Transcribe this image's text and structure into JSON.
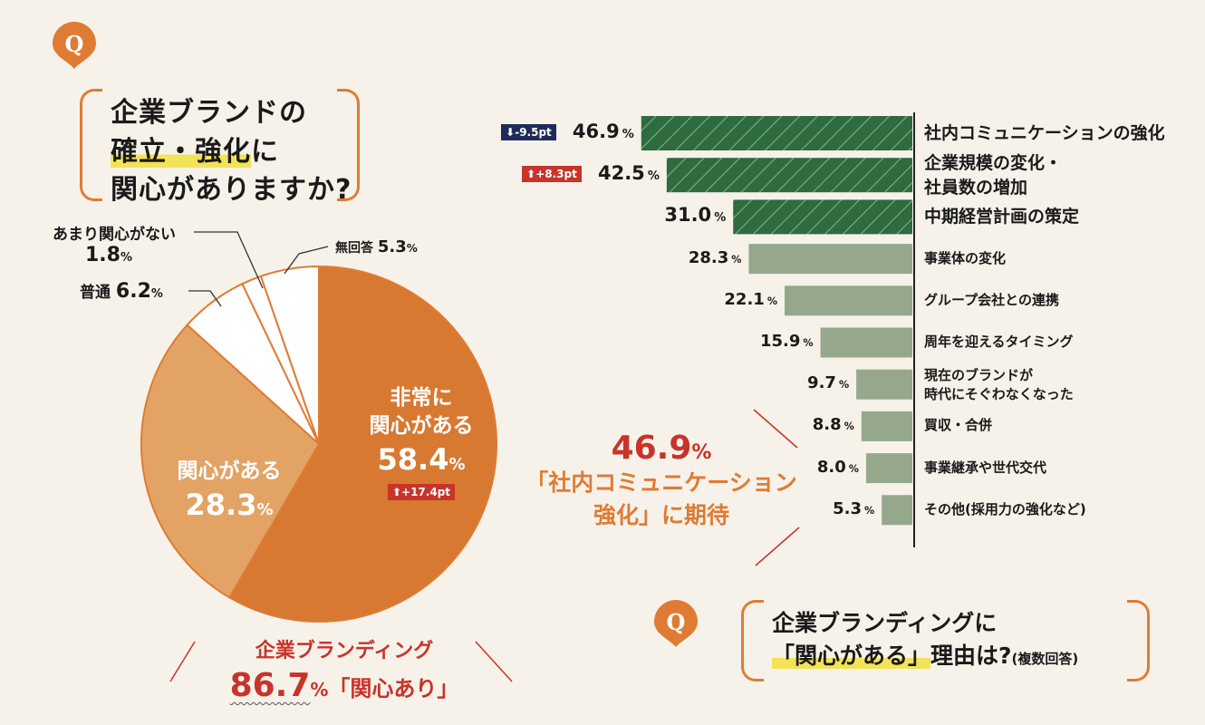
{
  "q1": {
    "badge": "Q",
    "line1": "企業ブランドの",
    "line2_hl": "確立・強化",
    "line2_rest": "に",
    "line3": "関心がありますか?"
  },
  "pie": {
    "callouts": {
      "no_interest_label": "あまり関心がない",
      "no_interest_value": "1.8",
      "normal_label": "普通",
      "normal_value": "6.2",
      "noanswer_label": "無回答",
      "noanswer_value": "5.3",
      "pct": "%"
    },
    "very_line1": "非常に",
    "very_line2": "関心がある",
    "very_value": "58.4",
    "very_change": "+17.4pt",
    "some_label": "関心がある",
    "some_value": "28.3"
  },
  "summary": {
    "line1": "企業ブランディング",
    "value": "86.7",
    "unit": "%",
    "rest": "「関心あり」"
  },
  "center_note": {
    "value": "46.9",
    "unit": "%",
    "line2": "「社内コミュニケーション",
    "line3": "強化」に期待"
  },
  "q2": {
    "badge": "Q",
    "line1": "企業ブランディングに",
    "line2_hl": "「関心がある」",
    "line2_rest": "理由は?",
    "line2_small": "(複数回答)"
  },
  "colors": {
    "very": "#d87932",
    "some": "#e3a365",
    "other": "#ffffff",
    "bar_dark": "#2e6b3f",
    "bar_light": "#96a88c",
    "accent": "#e07b34",
    "red": "#c8332a"
  },
  "chart_data": [
    {
      "type": "pie",
      "title": "企業ブランドの確立・強化に関心がありますか?",
      "labels": [
        "非常に関心がある",
        "関心がある",
        "普通",
        "あまり関心がない",
        "無回答"
      ],
      "values": [
        58.4,
        28.3,
        6.2,
        1.8,
        5.3
      ]
    },
    {
      "type": "bar",
      "orientation": "horizontal",
      "title": "企業ブランディングに「関心がある」理由は?(複数回答)",
      "categories": [
        "社内コミュニケーションの強化",
        "企業規模の変化・社員数の増加",
        "中期経営計画の策定",
        "事業体の変化",
        "グループ会社との連携",
        "周年を迎えるタイミング",
        "現在のブランドが時代にそぐわなくなった",
        "買収・合併",
        "事業継承や世代交代",
        "その他(採用力の強化など)"
      ],
      "values": [
        46.9,
        42.5,
        31.0,
        28.3,
        22.1,
        15.9,
        9.7,
        8.8,
        8.0,
        5.3
      ],
      "value_labels": [
        "46.9",
        "42.5",
        "31.0",
        "28.3",
        "22.1",
        "15.9",
        "9.7",
        "8.8",
        "8.0",
        "5.3"
      ],
      "changes": [
        "-9.5pt",
        "+8.3pt",
        null,
        null,
        null,
        null,
        null,
        null,
        null,
        null
      ],
      "highlight_top": 3,
      "unit": "%"
    }
  ]
}
